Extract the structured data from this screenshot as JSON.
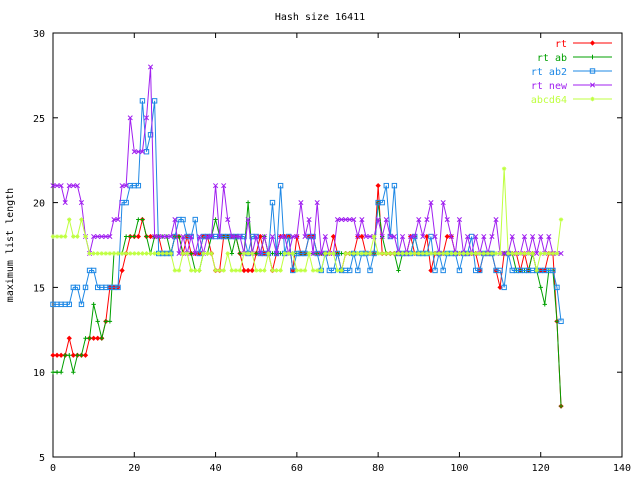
{
  "chart_data": {
    "type": "line",
    "title": "Hash size 16411",
    "xlabel": "",
    "ylabel": "maximum list length",
    "xlim": [
      0,
      140
    ],
    "ylim": [
      5,
      30
    ],
    "xticks": [
      0,
      20,
      40,
      60,
      80,
      100,
      120,
      140
    ],
    "yticks": [
      5,
      10,
      15,
      20,
      25,
      30
    ],
    "grid": false,
    "legend_position": "top-right",
    "series": [
      {
        "name": "rt",
        "color": "#ff0000",
        "marker": "diamond",
        "values": [
          11,
          11,
          11,
          11,
          12,
          11,
          11,
          11,
          11,
          12,
          12,
          12,
          12,
          13,
          15,
          15,
          15,
          16,
          17,
          18,
          18,
          18,
          19,
          18,
          18,
          18,
          18,
          17,
          17,
          17,
          18,
          18,
          17,
          18,
          17,
          17,
          17,
          18,
          18,
          17,
          16,
          16,
          18,
          18,
          18,
          18,
          17,
          16,
          16,
          16,
          17,
          18,
          17,
          17,
          16,
          17,
          18,
          18,
          18,
          16,
          18,
          17,
          17,
          18,
          18,
          17,
          17,
          17,
          17,
          18,
          17,
          16,
          17,
          17,
          17,
          18,
          18,
          17,
          17,
          17,
          21,
          17,
          17,
          17,
          17,
          17,
          17,
          17,
          18,
          17,
          17,
          17,
          18,
          16,
          17,
          17,
          17,
          18,
          18,
          17,
          17,
          17,
          17,
          17,
          17,
          16,
          17,
          17,
          17,
          16,
          15,
          17,
          17,
          17,
          17,
          16,
          17,
          16,
          17,
          16,
          16,
          16,
          17,
          17,
          13,
          8
        ]
      },
      {
        "name": "rt ab",
        "color": "#00a000",
        "marker": "plus",
        "values": [
          10,
          10,
          10,
          11,
          11,
          10,
          11,
          11,
          12,
          12,
          14,
          13,
          12,
          13,
          13,
          17,
          17,
          17,
          18,
          18,
          18,
          19,
          19,
          18,
          17,
          18,
          18,
          18,
          18,
          17,
          18,
          18,
          17,
          17,
          17,
          16,
          16,
          17,
          17,
          18,
          19,
          18,
          18,
          18,
          17,
          18,
          17,
          17,
          20,
          17,
          17,
          17,
          18,
          17,
          17,
          17,
          17,
          17,
          17,
          17,
          17,
          17,
          17,
          17,
          17,
          17,
          17,
          17,
          17,
          17,
          17,
          17,
          17,
          17,
          17,
          17,
          17,
          17,
          17,
          17,
          20,
          18,
          17,
          17,
          17,
          16,
          17,
          17,
          17,
          18,
          17,
          17,
          17,
          17,
          17,
          17,
          17,
          17,
          17,
          17,
          17,
          17,
          17,
          17,
          17,
          17,
          17,
          17,
          17,
          17,
          17,
          17,
          17,
          17,
          16,
          16,
          16,
          16,
          17,
          16,
          15,
          14,
          16,
          16,
          13,
          8
        ]
      },
      {
        "name": "rt ab2",
        "color": "#1e88e5",
        "marker": "square",
        "values": [
          14,
          14,
          14,
          14,
          14,
          15,
          15,
          14,
          15,
          16,
          16,
          15,
          15,
          15,
          15,
          15,
          15,
          20,
          20,
          21,
          21,
          21,
          26,
          23,
          24,
          26,
          17,
          17,
          17,
          17,
          18,
          19,
          19,
          18,
          18,
          19,
          17,
          18,
          18,
          18,
          18,
          18,
          18,
          18,
          18,
          18,
          18,
          18,
          17,
          18,
          18,
          17,
          17,
          17,
          20,
          17,
          21,
          17,
          18,
          16,
          17,
          17,
          17,
          18,
          18,
          17,
          16,
          17,
          16,
          16,
          17,
          16,
          16,
          16,
          17,
          16,
          17,
          17,
          16,
          17,
          20,
          20,
          21,
          18,
          21,
          17,
          17,
          17,
          17,
          18,
          17,
          17,
          17,
          18,
          16,
          17,
          16,
          17,
          17,
          17,
          16,
          17,
          17,
          18,
          16,
          16,
          17,
          17,
          17,
          16,
          16,
          15,
          17,
          16,
          16,
          16,
          16,
          16,
          16,
          16,
          16,
          16,
          16,
          16,
          15,
          13
        ]
      },
      {
        "name": "rt new",
        "color": "#a020f0",
        "marker": "cross",
        "values": [
          21,
          21,
          21,
          20,
          21,
          21,
          21,
          20,
          18,
          17,
          18,
          18,
          18,
          18,
          18,
          19,
          19,
          21,
          21,
          25,
          23,
          23,
          23,
          25,
          28,
          18,
          18,
          18,
          18,
          18,
          19,
          17,
          18,
          17,
          18,
          17,
          18,
          17,
          18,
          18,
          21,
          18,
          21,
          19,
          18,
          18,
          18,
          17,
          19,
          17,
          18,
          17,
          18,
          17,
          18,
          17,
          18,
          18,
          17,
          18,
          18,
          20,
          18,
          19,
          17,
          20,
          17,
          18,
          17,
          17,
          19,
          19,
          19,
          19,
          19,
          18,
          19,
          18,
          18,
          18,
          19,
          18,
          19,
          18,
          18,
          17,
          18,
          17,
          18,
          18,
          19,
          18,
          19,
          20,
          18,
          17,
          20,
          19,
          18,
          17,
          19,
          17,
          18,
          17,
          18,
          17,
          18,
          17,
          18,
          19,
          17,
          17,
          17,
          18,
          17,
          17,
          18,
          17,
          18,
          17,
          18,
          17,
          18,
          17,
          17,
          17
        ]
      },
      {
        "name": "abcd64",
        "color": "#bfff40",
        "marker": "star",
        "values": [
          18,
          18,
          18,
          18,
          19,
          18,
          18,
          19,
          18,
          17,
          17,
          17,
          17,
          17,
          17,
          17,
          17,
          17,
          17,
          17,
          17,
          17,
          17,
          17,
          17,
          17,
          17,
          17,
          17,
          17,
          16,
          16,
          17,
          17,
          16,
          16,
          16,
          17,
          17,
          17,
          16,
          16,
          16,
          17,
          16,
          16,
          16,
          17,
          17,
          17,
          16,
          16,
          16,
          17,
          16,
          16,
          16,
          17,
          17,
          17,
          16,
          16,
          16,
          17,
          16,
          16,
          16,
          17,
          17,
          17,
          16,
          16,
          17,
          17,
          17,
          17,
          17,
          17,
          17,
          18,
          17,
          17,
          17,
          17,
          17,
          17,
          17,
          17,
          17,
          17,
          17,
          17,
          17,
          17,
          17,
          17,
          17,
          17,
          17,
          17,
          17,
          17,
          17,
          17,
          17,
          17,
          17,
          17,
          17,
          17,
          17,
          22,
          17,
          17,
          17,
          17,
          17,
          17,
          17,
          16,
          17,
          17,
          17,
          17,
          17,
          19
        ]
      }
    ]
  }
}
